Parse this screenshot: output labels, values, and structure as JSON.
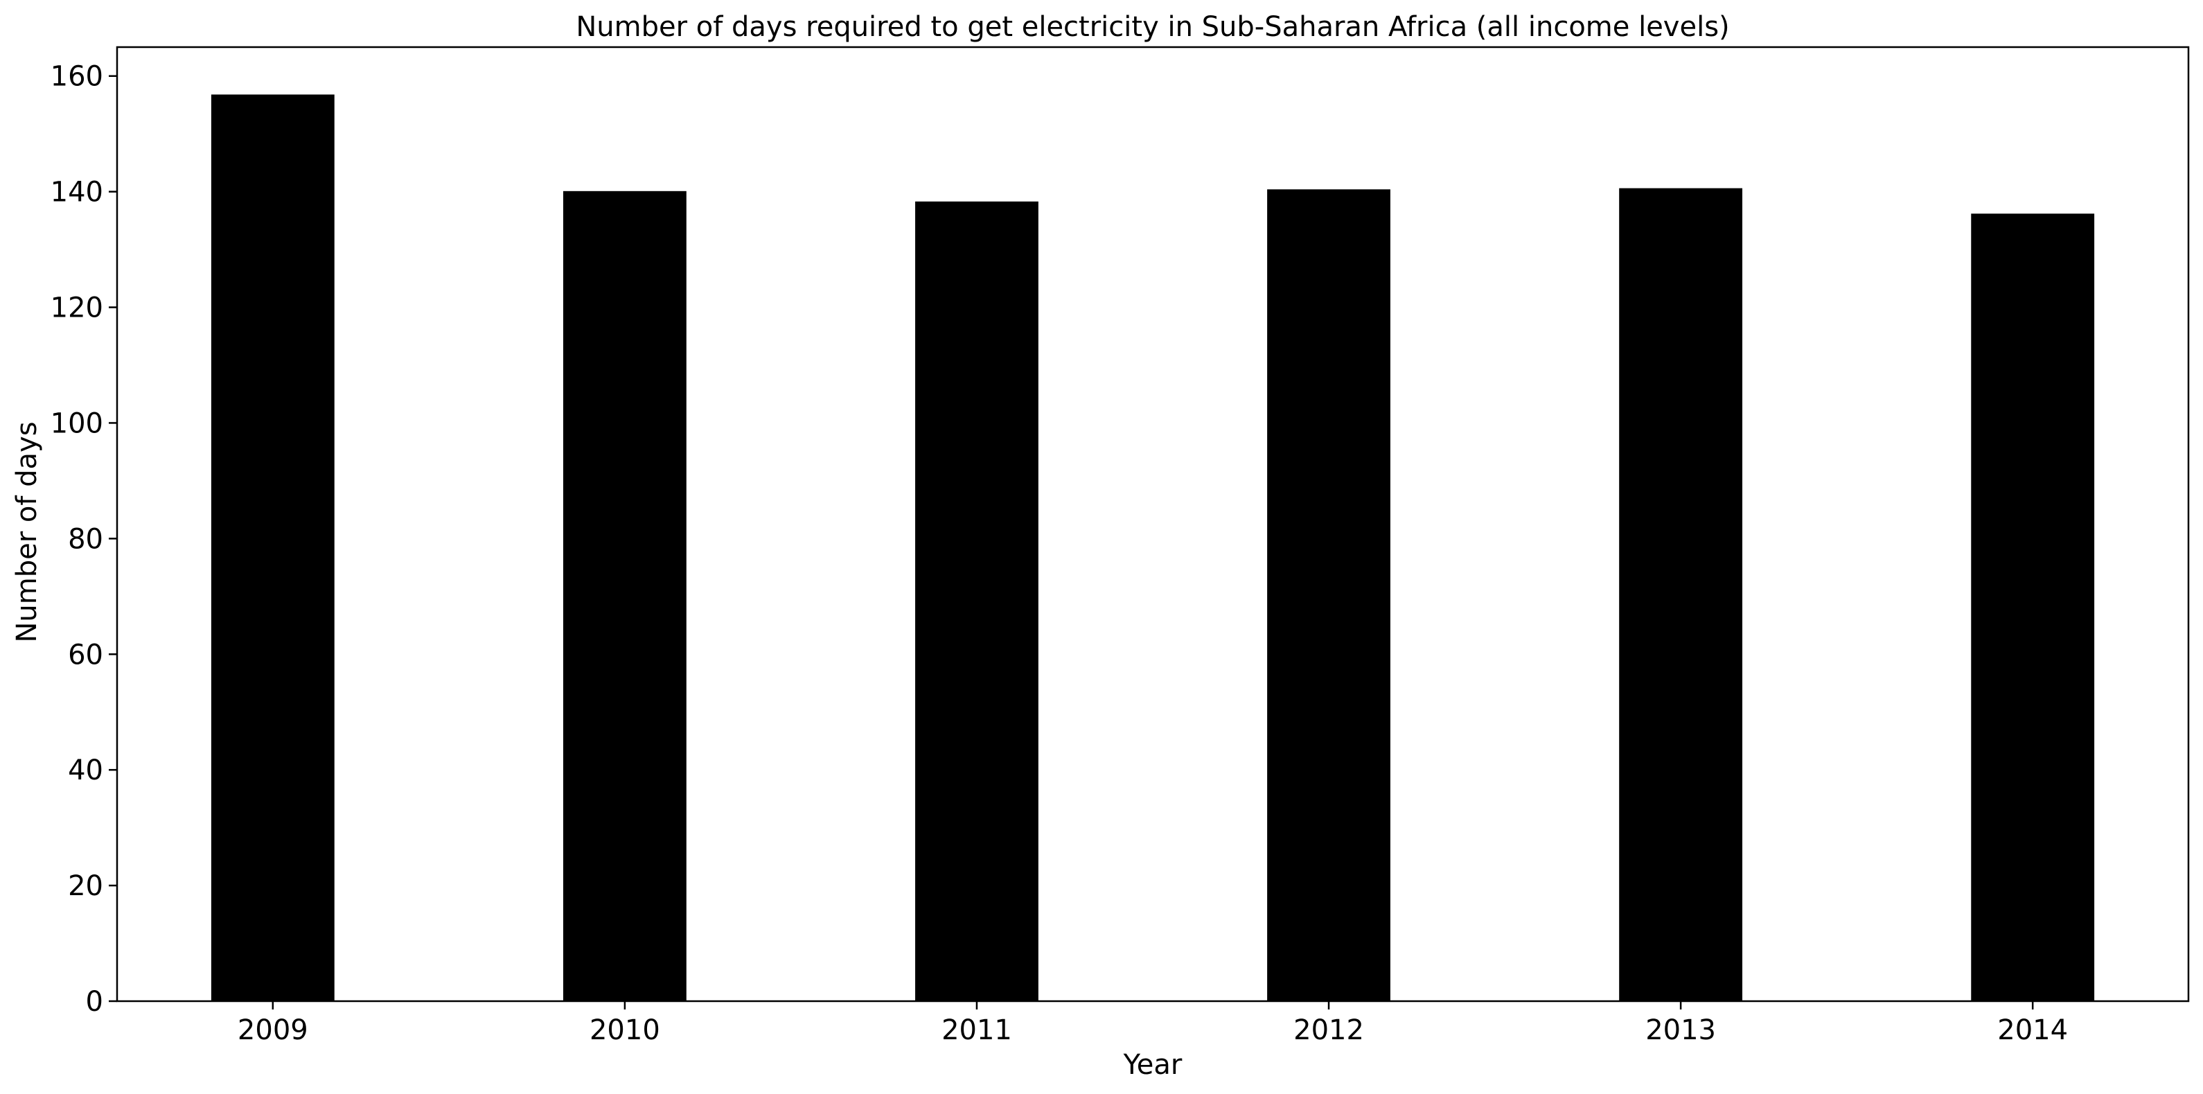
{
  "chart_data": {
    "type": "bar",
    "title": "Number of days required to get electricity in Sub-Saharan Africa (all income levels)",
    "xlabel": "Year",
    "ylabel": "Number of days",
    "categories": [
      "2009",
      "2010",
      "2011",
      "2012",
      "2013",
      "2014"
    ],
    "values": [
      156.8,
      140.1,
      138.3,
      140.4,
      140.6,
      136.2
    ],
    "ylim": [
      0,
      165
    ],
    "yticks": [
      0,
      20,
      40,
      60,
      80,
      100,
      120,
      140,
      160
    ],
    "grid": false,
    "legend": "none",
    "bar_color": "#000000"
  }
}
